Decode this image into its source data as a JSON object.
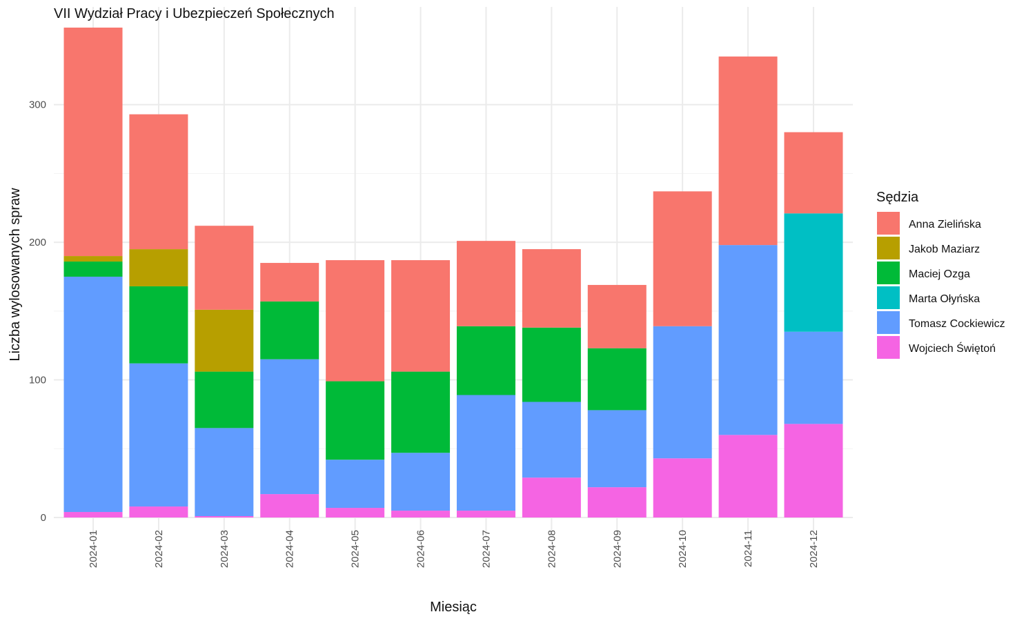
{
  "chart_data": {
    "type": "bar",
    "stacked": true,
    "title": "VII Wydział Pracy i Ubezpieczeń Społecznych",
    "xlabel": "Miesiąc",
    "ylabel": "Liczba wylosowanych spraw",
    "categories": [
      "2024-01",
      "2024-02",
      "2024-03",
      "2024-04",
      "2024-05",
      "2024-06",
      "2024-07",
      "2024-08",
      "2024-09",
      "2024-10",
      "2024-11",
      "2024-12"
    ],
    "ylim": [
      0,
      356
    ],
    "yticks": [
      0,
      100,
      200,
      300
    ],
    "grid": true,
    "legend": {
      "title": "Sędzia",
      "position": "right"
    },
    "series": [
      {
        "name": "Wojciech Świętoń",
        "color": "#F564E3",
        "values": [
          4,
          8,
          1,
          17,
          7,
          5,
          5,
          29,
          22,
          43,
          60,
          68
        ]
      },
      {
        "name": "Tomasz Cockiewicz",
        "color": "#619CFF",
        "values": [
          171,
          104,
          64,
          98,
          35,
          42,
          84,
          55,
          56,
          96,
          138,
          67
        ]
      },
      {
        "name": "Marta Ołyńska",
        "color": "#00BFC4",
        "values": [
          0,
          0,
          0,
          0,
          0,
          0,
          0,
          0,
          0,
          0,
          0,
          86
        ]
      },
      {
        "name": "Maciej Ozga",
        "color": "#00BA38",
        "values": [
          11,
          56,
          41,
          42,
          57,
          59,
          50,
          54,
          45,
          0,
          0,
          0
        ]
      },
      {
        "name": "Jakob Maziarz",
        "color": "#B79F00",
        "values": [
          4,
          27,
          45,
          0,
          0,
          0,
          0,
          0,
          0,
          0,
          0,
          0
        ]
      },
      {
        "name": "Anna Zielińska",
        "color": "#F8766D",
        "values": [
          166,
          98,
          61,
          28,
          88,
          81,
          62,
          57,
          46,
          98,
          137,
          59
        ]
      }
    ],
    "legend_order": [
      "Anna Zielińska",
      "Jakob Maziarz",
      "Maciej Ozga",
      "Marta Ołyńska",
      "Tomasz Cockiewicz",
      "Wojciech Świętoń"
    ]
  }
}
